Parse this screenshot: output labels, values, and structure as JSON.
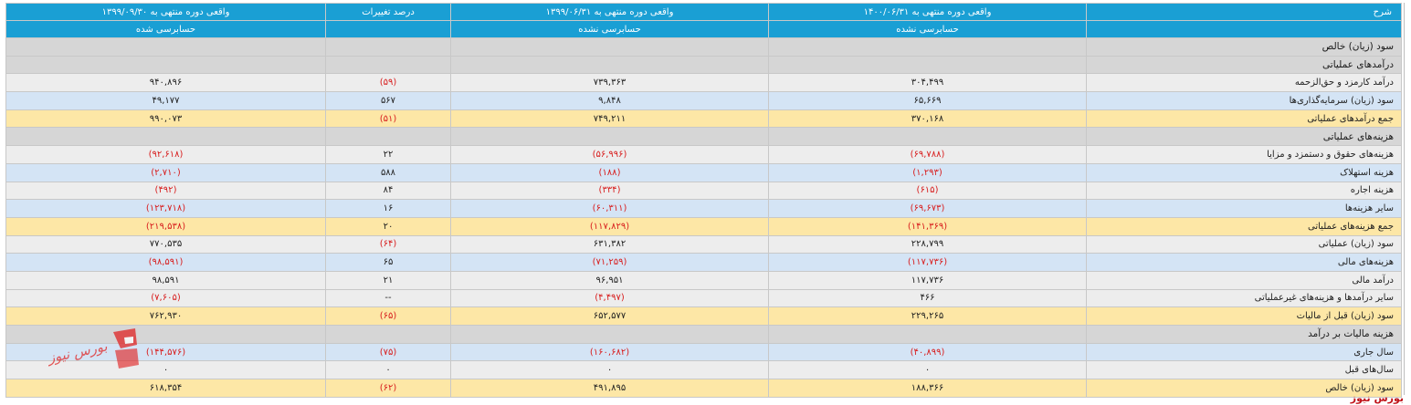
{
  "header": {
    "row1": {
      "sharh": "شرح",
      "period_1400": "واقعی دوره منتهی به ۱۴۰۰/۰۶/۳۱",
      "period_1399_06": "واقعی دوره منتهی به ۱۳۹۹/۰۶/۳۱",
      "change_pct": "درصد تغییرات",
      "period_1399_09": "واقعی دوره منتهی به ۱۳۹۹/۰۹/۳۰"
    },
    "row2": {
      "audit_1400": "حسابرسی نشده",
      "audit_1399_06": "حسابرسی نشده",
      "audit_1399_09": "حسابرسی شده"
    }
  },
  "rows": [
    {
      "label": "سود (زیان) خالص",
      "type": "section",
      "v1400": "",
      "v1399a": "",
      "chg": "",
      "v1399b": ""
    },
    {
      "label": "درآمدهای عملیاتی",
      "type": "section",
      "v1400": "",
      "v1399a": "",
      "chg": "",
      "v1399b": ""
    },
    {
      "label": "درآمد کارمزد و حق‌الزحمه",
      "type": "gray",
      "v1400": "۳۰۴,۴۹۹",
      "v1399a": "۷۳۹,۳۶۳",
      "chg": "(۵۹)",
      "v1399b": "۹۴۰,۸۹۶"
    },
    {
      "label": "سود (زیان) سرمایه‌گذاری‌ها",
      "type": "blue",
      "v1400": "۶۵,۶۶۹",
      "v1399a": "۹,۸۴۸",
      "chg": "۵۶۷",
      "v1399b": "۴۹,۱۷۷"
    },
    {
      "label": "جمع درآمدهای عملیاتی",
      "type": "yellow",
      "v1400": "۳۷۰,۱۶۸",
      "v1399a": "۷۴۹,۲۱۱",
      "chg": "(۵۱)",
      "v1399b": "۹۹۰,۰۷۳"
    },
    {
      "label": "هزینه‌های عملیاتی",
      "type": "section",
      "v1400": "",
      "v1399a": "",
      "chg": "",
      "v1399b": ""
    },
    {
      "label": "هزینه‌های حقوق و دستمزد و مزایا",
      "type": "gray",
      "v1400": "(۶۹,۷۸۸)",
      "v1399a": "(۵۶,۹۹۶)",
      "chg": "۲۲",
      "v1399b": "(۹۲,۶۱۸)"
    },
    {
      "label": "هزینه استهلاک",
      "type": "blue",
      "v1400": "(۱,۲۹۳)",
      "v1399a": "(۱۸۸)",
      "chg": "۵۸۸",
      "v1399b": "(۲,۷۱۰)"
    },
    {
      "label": "هزینه اجاره",
      "type": "gray",
      "v1400": "(۶۱۵)",
      "v1399a": "(۳۳۴)",
      "chg": "۸۴",
      "v1399b": "(۴۹۲)"
    },
    {
      "label": "سایر هزینه‌ها",
      "type": "blue",
      "v1400": "(۶۹,۶۷۳)",
      "v1399a": "(۶۰,۳۱۱)",
      "chg": "۱۶",
      "v1399b": "(۱۲۳,۷۱۸)"
    },
    {
      "label": "جمع هزینه‌های عملیاتی",
      "type": "yellow",
      "v1400": "(۱۴۱,۳۶۹)",
      "v1399a": "(۱۱۷,۸۲۹)",
      "chg": "۲۰",
      "v1399b": "(۲۱۹,۵۳۸)"
    },
    {
      "label": "سود (زیان) عملیاتی",
      "type": "gray",
      "v1400": "۲۲۸,۷۹۹",
      "v1399a": "۶۳۱,۳۸۲",
      "chg": "(۶۴)",
      "v1399b": "۷۷۰,۵۳۵"
    },
    {
      "label": "هزینه‌های مالی",
      "type": "blue",
      "v1400": "(۱۱۷,۷۳۶)",
      "v1399a": "(۷۱,۲۵۹)",
      "chg": "۶۵",
      "v1399b": "(۹۸,۵۹۱)"
    },
    {
      "label": "درآمد مالی",
      "type": "gray",
      "v1400": "۱۱۷,۷۳۶",
      "v1399a": "۹۶,۹۵۱",
      "chg": "۲۱",
      "v1399b": "۹۸,۵۹۱"
    },
    {
      "label": "سایر درآمدها و هزینه‌های غیرعملیاتی",
      "type": "gray",
      "v1400": "۴۶۶",
      "v1399a": "(۴,۴۹۷)",
      "chg": "--",
      "v1399b": "(۷,۶۰۵)"
    },
    {
      "label": "سود (زیان) قبل از مالیات",
      "type": "yellow",
      "v1400": "۲۲۹,۲۶۵",
      "v1399a": "۶۵۲,۵۷۷",
      "chg": "(۶۵)",
      "v1399b": "۷۶۲,۹۳۰"
    },
    {
      "label": "هزینه مالیات بر درآمد",
      "type": "section",
      "v1400": "",
      "v1399a": "",
      "chg": "",
      "v1399b": ""
    },
    {
      "label": "سال جاری",
      "type": "blue",
      "v1400": "(۴۰,۸۹۹)",
      "v1399a": "(۱۶۰,۶۸۲)",
      "chg": "(۷۵)",
      "v1399b": "(۱۴۴,۵۷۶)"
    },
    {
      "label": "سال‌های قبل",
      "type": "gray",
      "v1400": "۰",
      "v1399a": "۰",
      "chg": "۰",
      "v1399b": "۰"
    },
    {
      "label": "سود (زیان) خالص",
      "type": "yellow",
      "v1400": "۱۸۸,۳۶۶",
      "v1399a": "۴۹۱,۸۹۵",
      "chg": "(۶۲)",
      "v1399b": "۶۱۸,۳۵۴"
    }
  ],
  "watermark": {
    "text": "بورس نیوز"
  },
  "footer": {
    "brand": "بورس نیوز"
  },
  "colors": {
    "header_bg": "#1a9fd4",
    "section_bg": "#d6d6d6",
    "gray_row": "#ededed",
    "blue_row": "#d4e4f5",
    "total_row": "#fde7a6",
    "negative": "#d81e1e"
  }
}
